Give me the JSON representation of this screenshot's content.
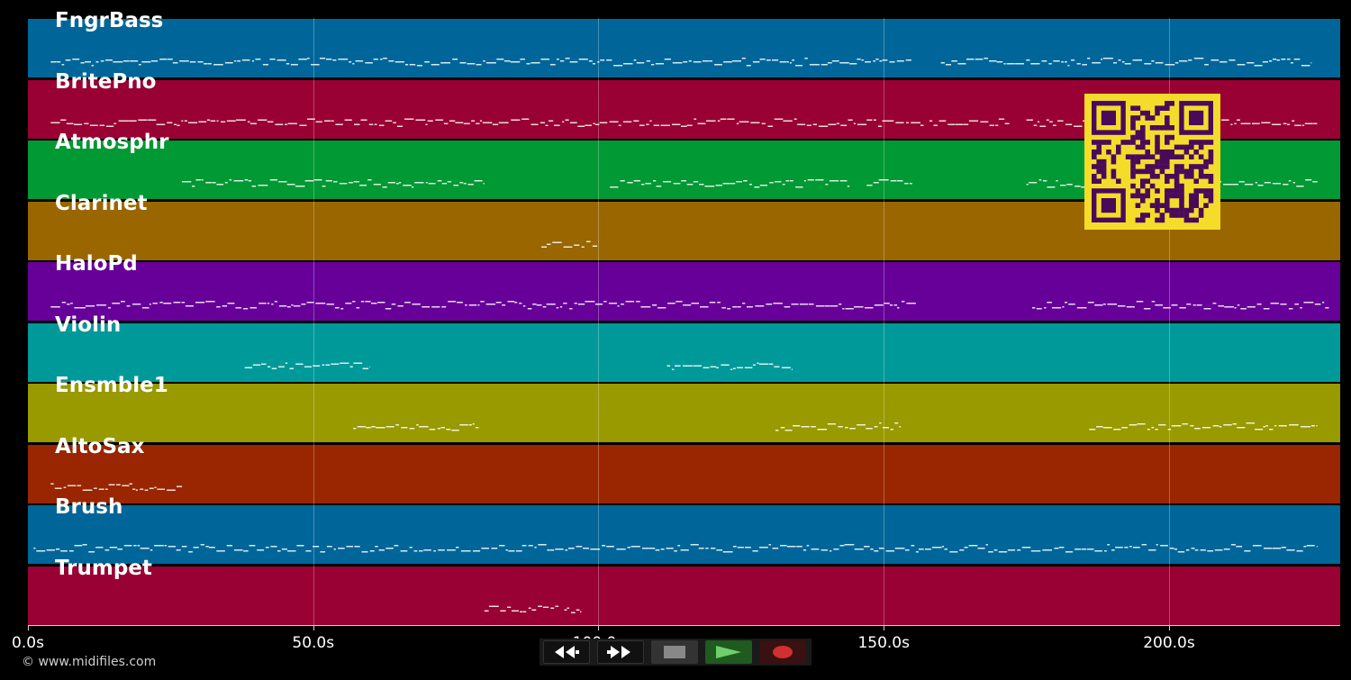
{
  "tracks": [
    {
      "name": "FngrBass",
      "color": "#006699"
    },
    {
      "name": "BritePno",
      "color": "#990033"
    },
    {
      "name": "Atmosphr",
      "color": "#009933"
    },
    {
      "name": "Clarinet",
      "color": "#996600"
    },
    {
      "name": "HaloPd",
      "color": "#660099"
    },
    {
      "name": "Violin",
      "color": "#009999"
    },
    {
      "name": "Ensmble1",
      "color": "#999900"
    },
    {
      "name": "AltoSax",
      "color": "#992600"
    },
    {
      "name": "Brush",
      "color": "#006699"
    },
    {
      "name": "Trumpet",
      "color": "#990033"
    }
  ],
  "time_axis": {
    "min_seconds": 0,
    "max_seconds": 230,
    "ticks": [
      {
        "value": 0,
        "label": "0.0s"
      },
      {
        "value": 50,
        "label": "50.0s"
      },
      {
        "value": 100,
        "label": "100.0s"
      },
      {
        "value": 150,
        "label": "150.0s"
      },
      {
        "value": 200,
        "label": "200.0s"
      }
    ]
  },
  "note_activity": {
    "FngrBass": [
      [
        4,
        155
      ],
      [
        160,
        225
      ]
    ],
    "BritePno": [
      [
        4,
        157
      ],
      [
        158,
        172
      ],
      [
        175,
        226
      ]
    ],
    "Atmosphr": [
      [
        27,
        80
      ],
      [
        102,
        144
      ],
      [
        147,
        155
      ],
      [
        175,
        226
      ]
    ],
    "Clarinet": [
      [
        90,
        100
      ]
    ],
    "HaloPd": [
      [
        4,
        156
      ],
      [
        176,
        228
      ]
    ],
    "Violin": [
      [
        38,
        60
      ],
      [
        112,
        134
      ]
    ],
    "Ensmble1": [
      [
        57,
        79
      ],
      [
        131,
        153
      ],
      [
        186,
        226
      ]
    ],
    "AltoSax": [
      [
        4,
        27
      ]
    ],
    "Brush": [
      [
        1,
        226
      ]
    ],
    "Trumpet": [
      [
        80,
        93
      ],
      [
        94,
        97
      ]
    ]
  },
  "transport": {
    "rewind_icon": "rewind-icon",
    "fast_forward_icon": "fast-forward-icon",
    "stop_icon": "stop-icon",
    "play_icon": "play-icon",
    "record_icon": "record-icon",
    "colors": {
      "play": "#6fcf6f",
      "record": "#d03030",
      "stop": "#888888"
    }
  },
  "qr_colors": {
    "background": "#f5dc2a",
    "modules": "#4a0a5a"
  },
  "copyright": "© www.midifiles.com"
}
